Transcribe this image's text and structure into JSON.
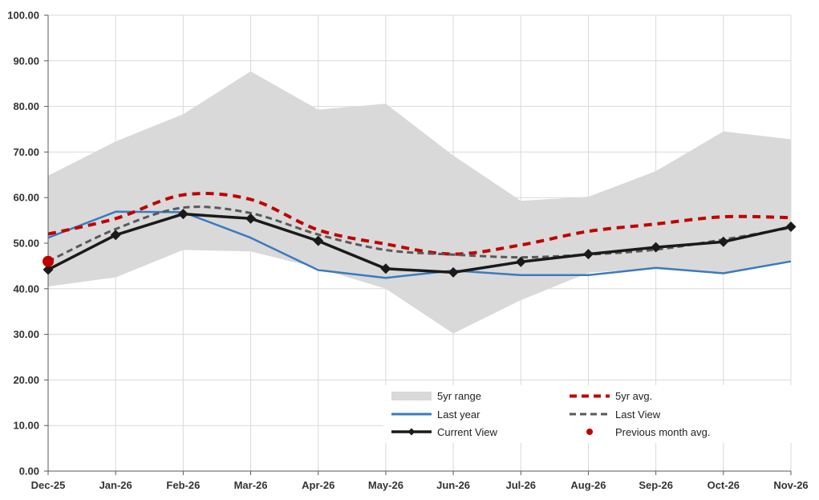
{
  "chart_data": {
    "type": "line",
    "categories": [
      "Dec-25",
      "Jan-26",
      "Feb-26",
      "Mar-26",
      "Apr-26",
      "May-26",
      "Jun-26",
      "Jul-26",
      "Aug-26",
      "Sep-26",
      "Oct-26",
      "Nov-26"
    ],
    "ylim": [
      0,
      100
    ],
    "yticks": [
      "0.00",
      "10.00",
      "20.00",
      "30.00",
      "40.00",
      "50.00",
      "60.00",
      "70.00",
      "80.00",
      "90.00",
      "100.00"
    ],
    "grid": true,
    "range": {
      "name": "5yr range",
      "low": [
        40.5,
        42.5,
        48.5,
        48.2,
        44.5,
        40.0,
        30.2,
        37.5,
        43.5,
        44.5,
        43.5,
        46.0
      ],
      "high": [
        64.8,
        72.3,
        78.3,
        87.7,
        79.3,
        80.6,
        69.2,
        59.3,
        60.2,
        65.8,
        74.5,
        72.8
      ]
    },
    "series": [
      {
        "name": "5yr avg.",
        "values": [
          52.0,
          55.4,
          60.6,
          59.6,
          52.9,
          49.8,
          47.6,
          49.6,
          52.6,
          54.2,
          55.8,
          55.6
        ]
      },
      {
        "name": "Last year",
        "values": [
          51.2,
          56.9,
          56.8,
          51.2,
          44.1,
          42.4,
          44.0,
          43.0,
          43.0,
          44.6,
          43.4,
          46.0
        ]
      },
      {
        "name": "Last View",
        "values": [
          46.0,
          53.1,
          57.8,
          56.6,
          51.9,
          48.5,
          47.5,
          46.9,
          47.5,
          48.6,
          50.8,
          53.4
        ]
      },
      {
        "name": "Current View",
        "values": [
          44.2,
          51.8,
          56.4,
          55.4,
          50.5,
          44.4,
          43.6,
          45.9,
          47.6,
          49.1,
          50.3,
          53.6
        ]
      }
    ],
    "previous_month_avg": {
      "name": "Previous month avg.",
      "category": "Dec-25",
      "value": 46.0
    },
    "colors": {
      "range": "#d9d9d9",
      "avg5yr": "#c00000",
      "last_year": "#3a7bbf",
      "last_view": "#595959",
      "current_view": "#1a1a1a",
      "prev_month": "#c00000"
    },
    "legend": {
      "position": "bottom-right",
      "items": [
        "5yr range",
        "5yr avg.",
        "Last year",
        "Last View",
        "Current View",
        "Previous month avg."
      ]
    }
  }
}
